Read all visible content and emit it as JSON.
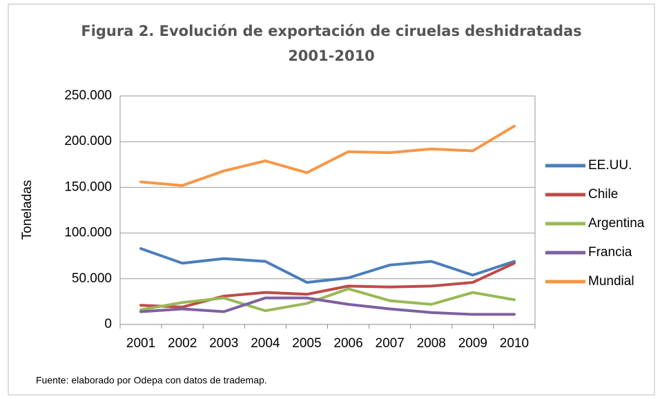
{
  "chart_data": {
    "type": "line",
    "title": [
      "Figura 2. Evolución de exportación de ciruelas deshidratadas",
      "2001-2010"
    ],
    "y_label": "Toneladas",
    "source": "Fuente: elaborado por Odepa con datos de trademap.",
    "categories": [
      "2001",
      "2002",
      "2003",
      "2004",
      "2005",
      "2006",
      "2007",
      "2008",
      "2009",
      "2010"
    ],
    "series": [
      {
        "name": "EE.UU.",
        "color": "#4a7ebb",
        "values": [
          83000,
          67000,
          72000,
          69000,
          46000,
          51000,
          65000,
          69000,
          54000,
          69000
        ]
      },
      {
        "name": "Chile",
        "color": "#be4b48",
        "values": [
          21000,
          19000,
          31000,
          35000,
          33000,
          42000,
          41000,
          42000,
          46000,
          67000
        ]
      },
      {
        "name": "Argentina",
        "color": "#98b954",
        "values": [
          16000,
          24000,
          29000,
          15000,
          23000,
          39000,
          26000,
          22000,
          35000,
          27000
        ]
      },
      {
        "name": "Francia",
        "color": "#7d60a0",
        "values": [
          14000,
          17000,
          14000,
          29000,
          29000,
          22000,
          17000,
          13000,
          11000,
          11000
        ]
      },
      {
        "name": "Mundial",
        "color": "#f79646",
        "values": [
          156000,
          152000,
          168000,
          179000,
          166000,
          189000,
          188000,
          192000,
          190000,
          217000
        ]
      }
    ],
    "ylim": [
      0,
      250000
    ],
    "yticks": [
      0,
      {
        "value": 50000,
        "label": "50.000"
      },
      {
        "value": 100000,
        "label": "100.000"
      },
      {
        "value": 150000,
        "label": "150.000"
      },
      {
        "value": 200000,
        "label": "200.000"
      },
      {
        "value": 250000,
        "label": "250.000"
      }
    ],
    "grid": true,
    "legend": "right"
  }
}
